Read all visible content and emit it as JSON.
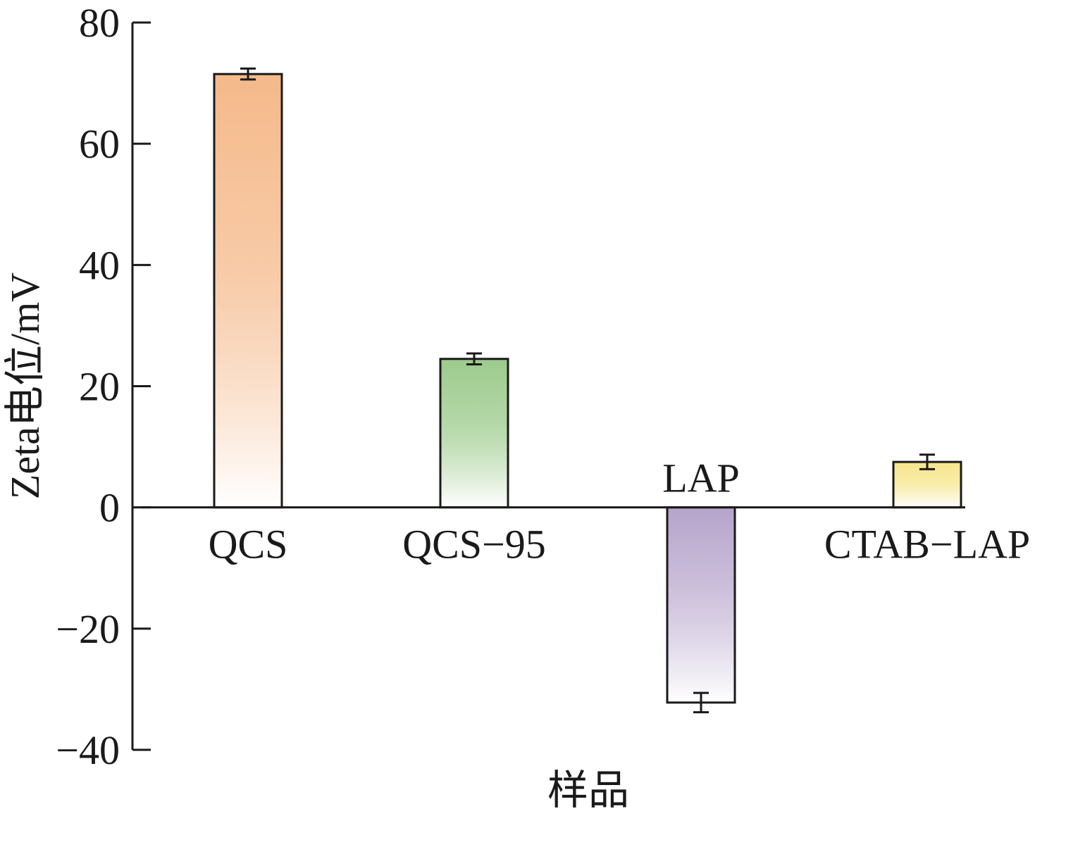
{
  "chart_data": {
    "type": "bar",
    "categories": [
      "QCS",
      "QCS-95",
      "LAP",
      "CTAB-LAP"
    ],
    "category_display": [
      "QCS",
      "QCS−95",
      "LAP",
      "CTAB−LAP"
    ],
    "values": [
      71.5,
      24.5,
      -32.2,
      7.5
    ],
    "errors": [
      0.9,
      0.9,
      1.6,
      1.2
    ],
    "colors": [
      "#f5b98a",
      "#9ccb8c",
      "#b6a4cb",
      "#f7e58a"
    ],
    "xlabel": "样品",
    "ylabel": "Zeta电位/mV",
    "ylim": [
      -40,
      80
    ],
    "yticks": [
      -40,
      -20,
      0,
      20,
      40,
      60,
      80
    ],
    "ytick_labels": [
      "−40",
      "−20",
      "0",
      "20",
      "40",
      "60",
      "80"
    ],
    "grid": false,
    "legend": "none"
  }
}
